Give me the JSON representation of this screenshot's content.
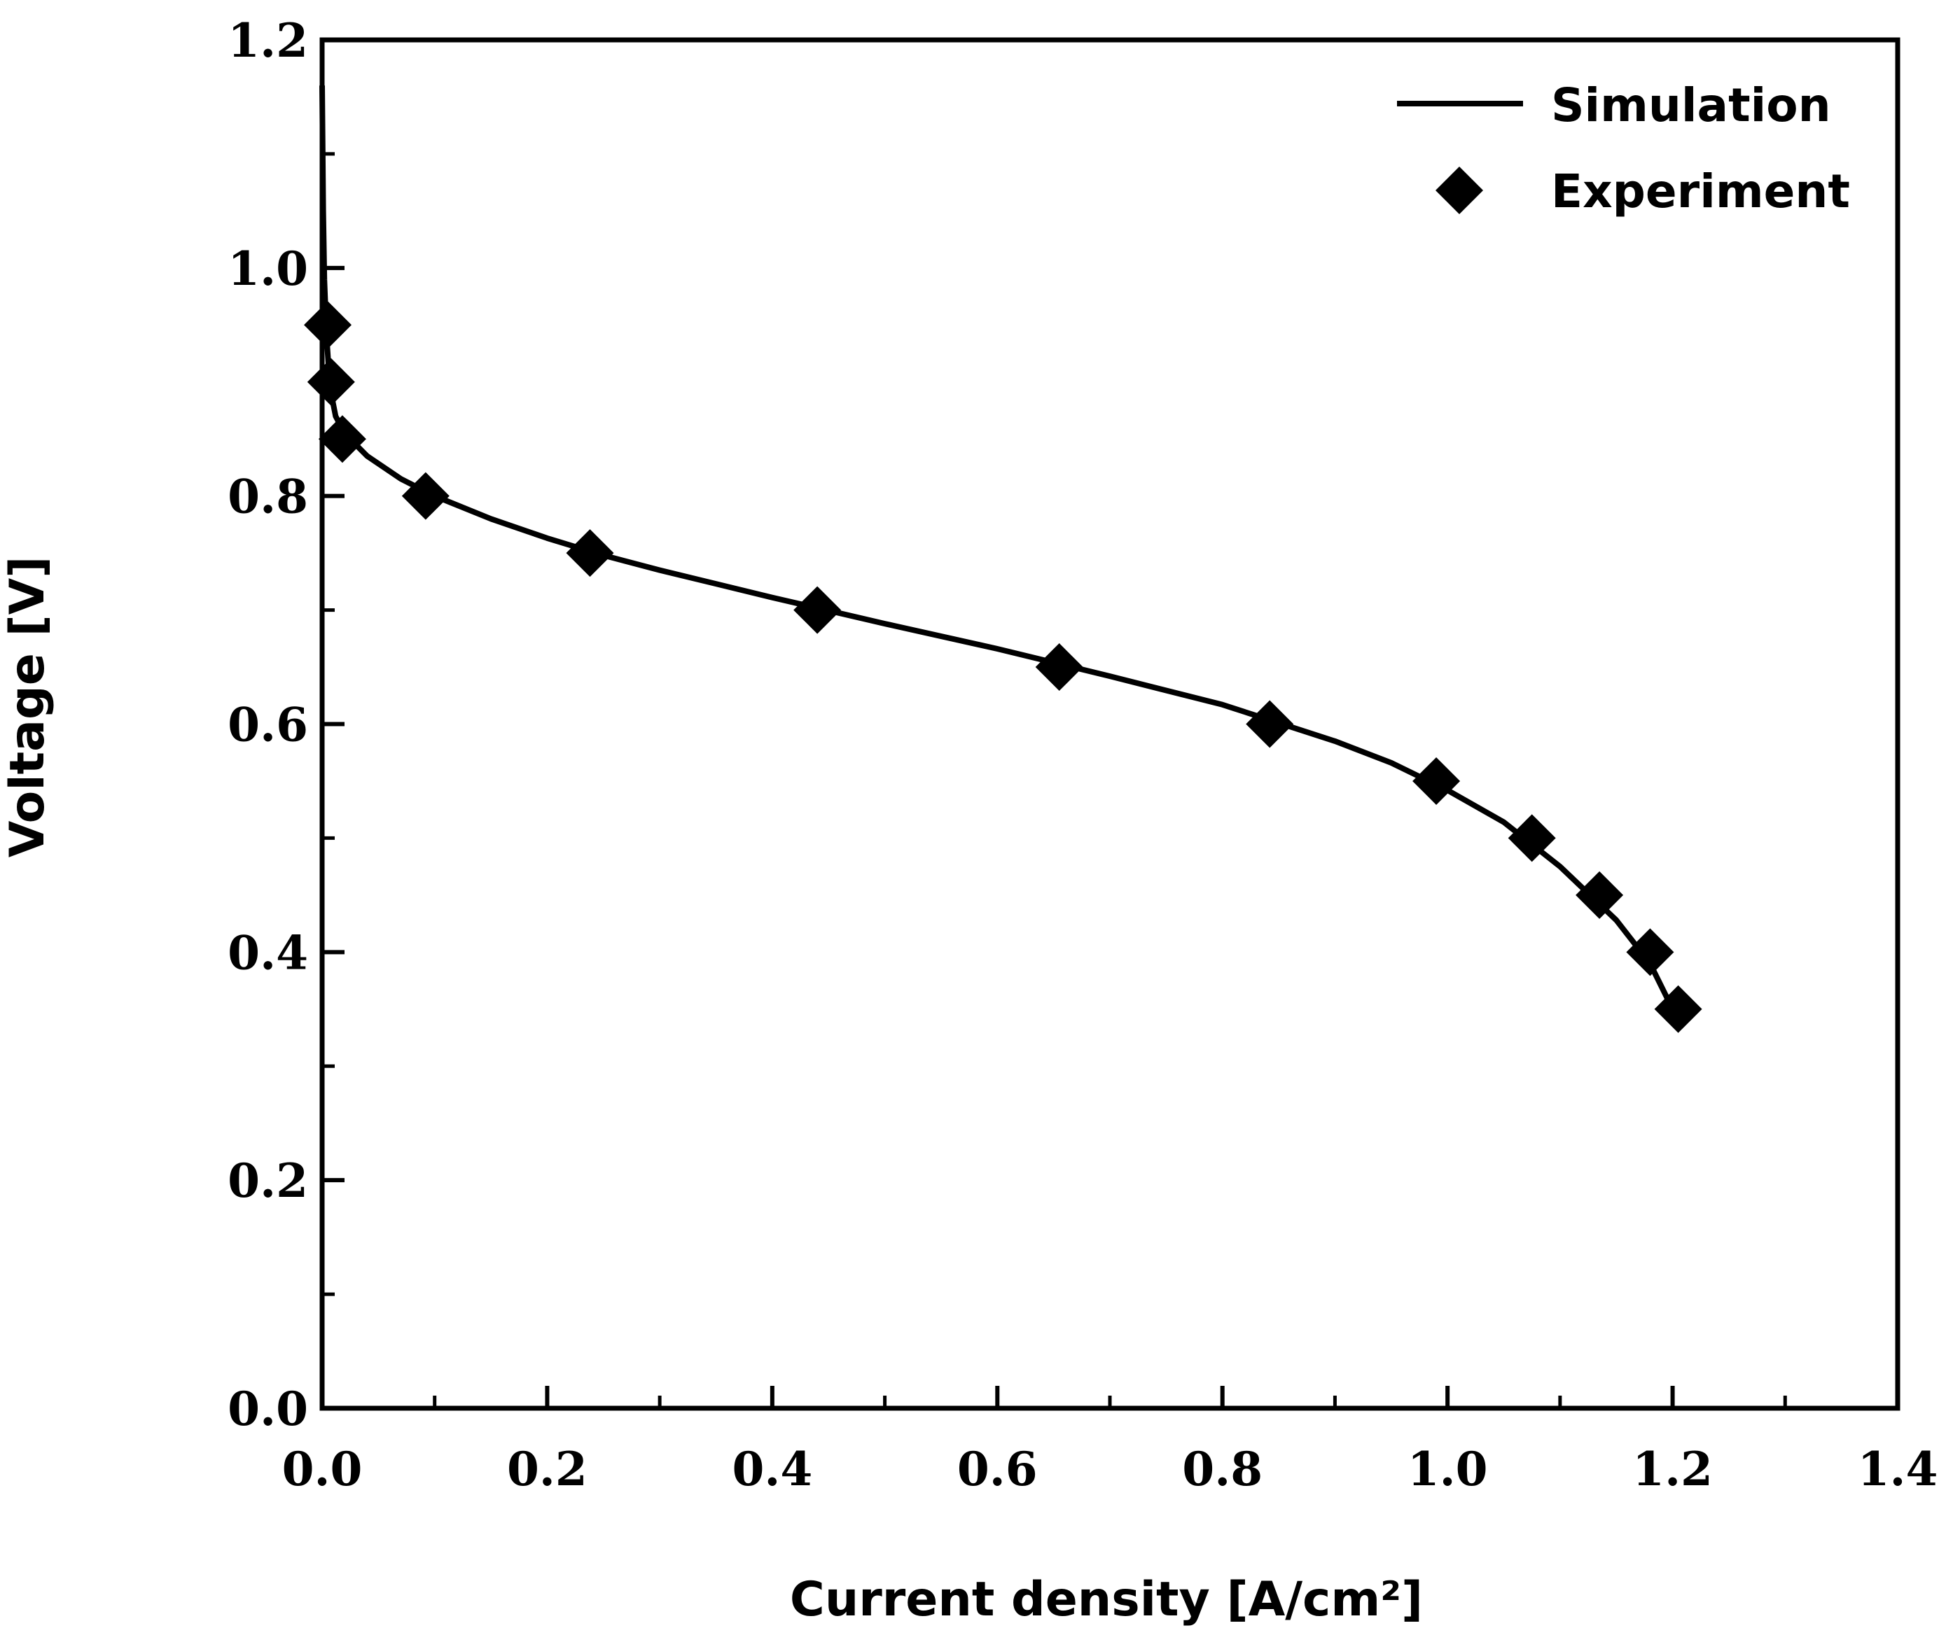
{
  "chart_data": {
    "type": "line",
    "title": "",
    "xlabel": "Current density [A/cm²]",
    "ylabel": "Voltage [V]",
    "xlim": [
      0.0,
      1.4
    ],
    "ylim": [
      0.0,
      1.2
    ],
    "xticks": [
      "0.0",
      "0.2",
      "0.4",
      "0.6",
      "0.8",
      "1.0",
      "1.2",
      "1.4"
    ],
    "yticks": [
      "0.0",
      "0.2",
      "0.4",
      "0.6",
      "0.8",
      "1.0",
      "1.2"
    ],
    "grid": false,
    "legend_position": "top-right",
    "series": [
      {
        "name": "Simulation",
        "style": "line",
        "color": "#000000",
        "x": [
          0.0,
          0.001,
          0.002,
          0.004,
          0.006,
          0.008,
          0.012,
          0.02,
          0.04,
          0.07,
          0.1,
          0.15,
          0.2,
          0.25,
          0.3,
          0.4,
          0.5,
          0.6,
          0.7,
          0.8,
          0.9,
          0.95,
          1.0,
          1.05,
          1.1,
          1.15,
          1.18,
          1.2
        ],
        "y": [
          1.16,
          1.05,
          0.99,
          0.94,
          0.91,
          0.89,
          0.87,
          0.855,
          0.835,
          0.815,
          0.8,
          0.78,
          0.763,
          0.748,
          0.735,
          0.711,
          0.688,
          0.666,
          0.642,
          0.617,
          0.585,
          0.566,
          0.542,
          0.514,
          0.475,
          0.428,
          0.39,
          0.35
        ]
      },
      {
        "name": "Experiment",
        "style": "marker",
        "marker": "diamond",
        "color": "#000000",
        "x": [
          0.005,
          0.008,
          0.018,
          0.092,
          0.238,
          0.44,
          0.655,
          0.842,
          0.99,
          1.075,
          1.135,
          1.18,
          1.205
        ],
        "y": [
          0.95,
          0.9,
          0.85,
          0.8,
          0.75,
          0.7,
          0.65,
          0.6,
          0.55,
          0.5,
          0.45,
          0.4,
          0.35
        ]
      }
    ]
  }
}
